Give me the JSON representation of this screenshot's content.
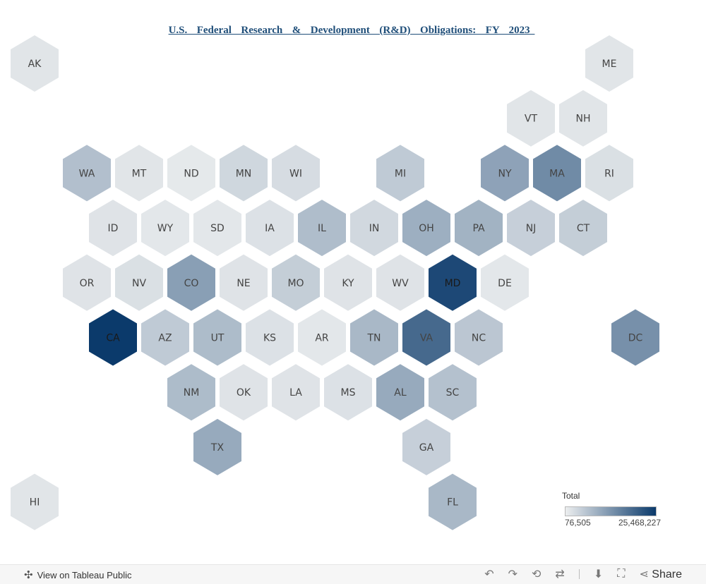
{
  "title": "U.S.  Federal  Research  &  Development  (R&D)  Obligations:  FY  2023 ",
  "chart_data": {
    "type": "heatmap",
    "subtype": "hex-tile-map",
    "title": "U.S.  Federal  Research  &  Development  (R&D)  Obligations:  FY  2023 ",
    "legend_title": "Total",
    "min": 76505,
    "max": 25468227,
    "min_label": "76,505",
    "max_label": "25,468,227",
    "color_low": "#eceeef",
    "color_high": "#0b3a6b",
    "tiles": [
      {
        "code": "AK",
        "row": 0,
        "col": 0,
        "value": 0.05
      },
      {
        "code": "ME",
        "row": 0,
        "col": 11,
        "value": 0.05
      },
      {
        "code": "VT",
        "row": 1,
        "col": 9.5,
        "value": 0.05
      },
      {
        "code": "NH",
        "row": 1,
        "col": 10.5,
        "value": 0.05
      },
      {
        "code": "WA",
        "row": 2,
        "col": 1,
        "value": 0.26
      },
      {
        "code": "MT",
        "row": 2,
        "col": 2,
        "value": 0.05
      },
      {
        "code": "ND",
        "row": 2,
        "col": 3,
        "value": 0.03
      },
      {
        "code": "MN",
        "row": 2,
        "col": 4,
        "value": 0.13
      },
      {
        "code": "WI",
        "row": 2,
        "col": 5,
        "value": 0.1
      },
      {
        "code": "MI",
        "row": 2,
        "col": 7,
        "value": 0.2
      },
      {
        "code": "NY",
        "row": 2,
        "col": 9,
        "value": 0.42
      },
      {
        "code": "MA",
        "row": 2,
        "col": 10,
        "value": 0.55
      },
      {
        "code": "RI",
        "row": 2,
        "col": 11,
        "value": 0.08
      },
      {
        "code": "ID",
        "row": 3,
        "col": 1.5,
        "value": 0.06
      },
      {
        "code": "WY",
        "row": 3,
        "col": 2.5,
        "value": 0.04
      },
      {
        "code": "SD",
        "row": 3,
        "col": 3.5,
        "value": 0.04
      },
      {
        "code": "IA",
        "row": 3,
        "col": 4.5,
        "value": 0.07
      },
      {
        "code": "IL",
        "row": 3,
        "col": 5.5,
        "value": 0.27
      },
      {
        "code": "IN",
        "row": 3,
        "col": 6.5,
        "value": 0.12
      },
      {
        "code": "OH",
        "row": 3,
        "col": 7.5,
        "value": 0.35
      },
      {
        "code": "PA",
        "row": 3,
        "col": 8.5,
        "value": 0.33
      },
      {
        "code": "NJ",
        "row": 3,
        "col": 9.5,
        "value": 0.17
      },
      {
        "code": "CT",
        "row": 3,
        "col": 10.5,
        "value": 0.18
      },
      {
        "code": "OR",
        "row": 4,
        "col": 1,
        "value": 0.06
      },
      {
        "code": "NV",
        "row": 4,
        "col": 2,
        "value": 0.08
      },
      {
        "code": "CO",
        "row": 4,
        "col": 3,
        "value": 0.44
      },
      {
        "code": "NE",
        "row": 4,
        "col": 4,
        "value": 0.06
      },
      {
        "code": "MO",
        "row": 4,
        "col": 5,
        "value": 0.18
      },
      {
        "code": "KY",
        "row": 4,
        "col": 6,
        "value": 0.06
      },
      {
        "code": "WV",
        "row": 4,
        "col": 7,
        "value": 0.06
      },
      {
        "code": "MD",
        "row": 4,
        "col": 8,
        "value": 0.92
      },
      {
        "code": "DE",
        "row": 4,
        "col": 9,
        "value": 0.04
      },
      {
        "code": "CA",
        "row": 5,
        "col": 1.5,
        "value": 1.0
      },
      {
        "code": "AZ",
        "row": 5,
        "col": 2.5,
        "value": 0.2
      },
      {
        "code": "UT",
        "row": 5,
        "col": 3.5,
        "value": 0.28
      },
      {
        "code": "KS",
        "row": 5,
        "col": 4.5,
        "value": 0.07
      },
      {
        "code": "AR",
        "row": 5,
        "col": 5.5,
        "value": 0.04
      },
      {
        "code": "TN",
        "row": 5,
        "col": 6.5,
        "value": 0.3
      },
      {
        "code": "VA",
        "row": 5,
        "col": 7.5,
        "value": 0.74
      },
      {
        "code": "NC",
        "row": 5,
        "col": 8.5,
        "value": 0.22
      },
      {
        "code": "DC",
        "row": 5,
        "col": 11.5,
        "value": 0.52
      },
      {
        "code": "NM",
        "row": 6,
        "col": 3,
        "value": 0.28
      },
      {
        "code": "OK",
        "row": 6,
        "col": 4,
        "value": 0.06
      },
      {
        "code": "LA",
        "row": 6,
        "col": 5,
        "value": 0.06
      },
      {
        "code": "MS",
        "row": 6,
        "col": 6,
        "value": 0.07
      },
      {
        "code": "AL",
        "row": 6,
        "col": 7,
        "value": 0.38
      },
      {
        "code": "SC",
        "row": 6,
        "col": 8,
        "value": 0.25
      },
      {
        "code": "TX",
        "row": 7,
        "col": 3.5,
        "value": 0.38
      },
      {
        "code": "GA",
        "row": 7,
        "col": 7.5,
        "value": 0.17
      },
      {
        "code": "HI",
        "row": 8,
        "col": 0,
        "value": 0.05
      },
      {
        "code": "FL",
        "row": 8,
        "col": 8,
        "value": 0.3
      }
    ]
  },
  "footer": {
    "view_label": "View on Tableau Public",
    "share_label": "Share"
  }
}
